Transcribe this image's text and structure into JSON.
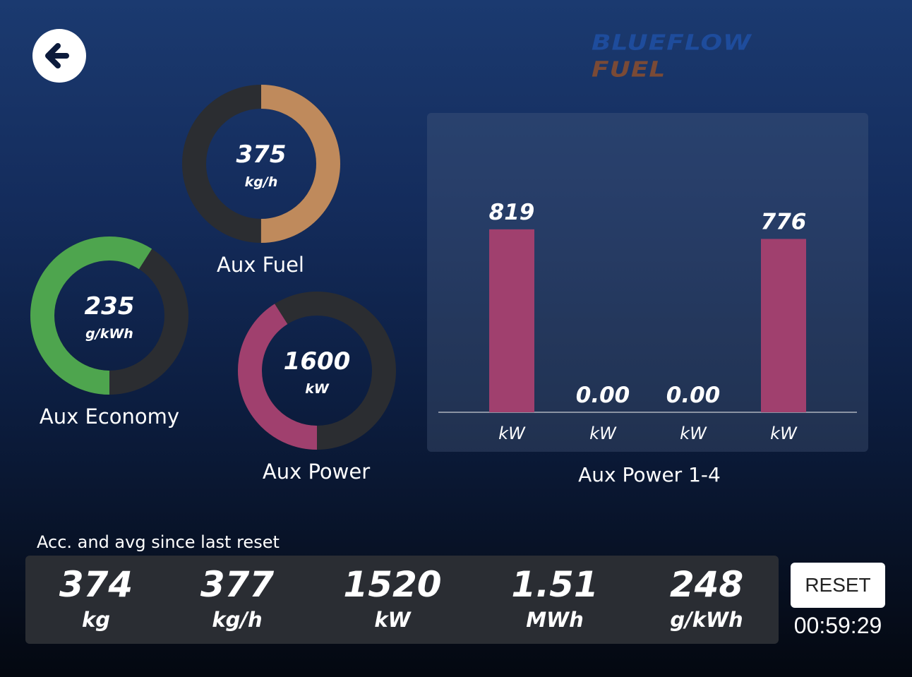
{
  "brand": {
    "line1": "BLUEFLOW",
    "line2": "FUEL",
    "color_blue": "#1e4c9c",
    "color_fuel": "#7a4a36"
  },
  "back_icon": "arrow-left-icon",
  "gauges": {
    "aux_fuel": {
      "value": "375",
      "unit": "kg/h",
      "label": "Aux Fuel",
      "fill_fraction": 0.5,
      "color": "#bf8a5c"
    },
    "aux_economy": {
      "value": "235",
      "unit": "g/kWh",
      "label": "Aux Economy",
      "fill_fraction": 0.59,
      "color": "#4ea54e"
    },
    "aux_power": {
      "value": "1600",
      "unit": "kW",
      "label": "Aux Power",
      "fill_fraction": 0.41,
      "color": "#a0406e"
    }
  },
  "chart_data": {
    "type": "bar",
    "title": "Aux Power 1-4",
    "categories": [
      "kW",
      "kW",
      "kW",
      "kW"
    ],
    "values": [
      819,
      0,
      0,
      776
    ],
    "value_labels": [
      "819",
      "0.00",
      "0.00",
      "776"
    ],
    "bar_color": "#a0406e",
    "ylim": [
      0,
      1000
    ]
  },
  "summary": {
    "label": "Acc. and avg since last reset",
    "stats": [
      {
        "value": "374",
        "unit": "kg"
      },
      {
        "value": "377",
        "unit": "kg/h"
      },
      {
        "value": "1520",
        "unit": "kW"
      },
      {
        "value": "1.51",
        "unit": "MWh"
      },
      {
        "value": "248",
        "unit": "g/kWh"
      }
    ]
  },
  "reset": {
    "label": "RESET",
    "timer": "00:59:29"
  }
}
